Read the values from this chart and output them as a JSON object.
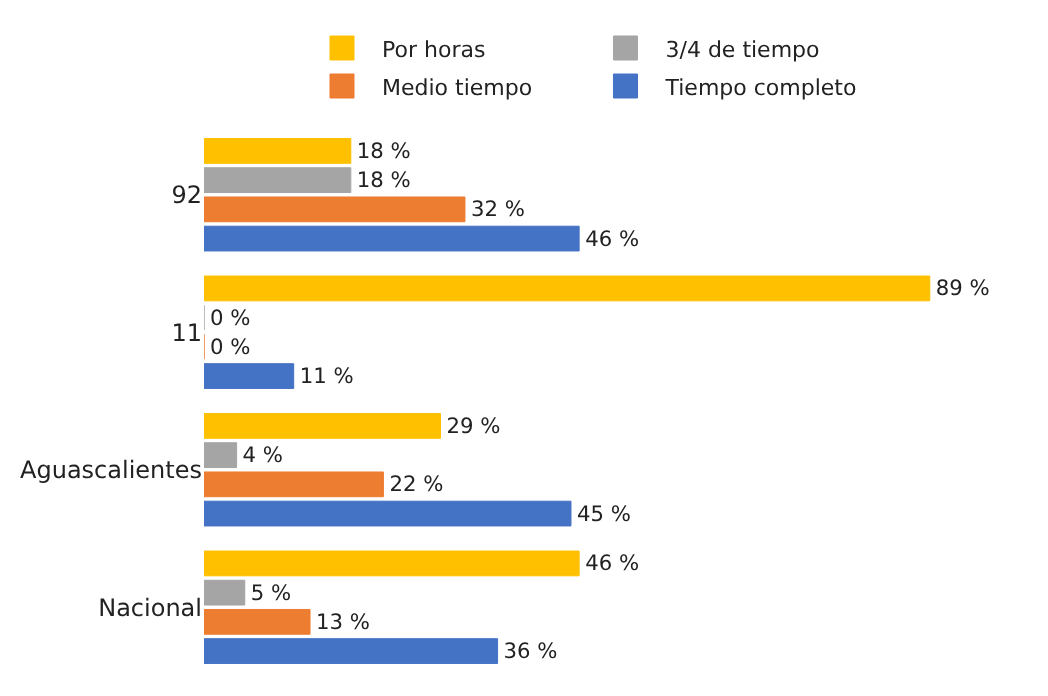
{
  "chart_data": {
    "type": "bar",
    "orientation": "horizontal",
    "categories": [
      "92",
      "11",
      "Aguascalientes",
      "Nacional"
    ],
    "legend": "top",
    "series": [
      {
        "name": "Por horas",
        "color": "#ffc000",
        "values": [
          18,
          89,
          29,
          46
        ],
        "value_labels": [
          "18 %",
          "89 %",
          "29 %",
          "46 %"
        ]
      },
      {
        "name": "3/4 de tiempo",
        "color": "#a5a5a5",
        "values": [
          18,
          0,
          4,
          5
        ],
        "value_labels": [
          "18 %",
          "0 %",
          "4 %",
          "5 %"
        ]
      },
      {
        "name": "Medio tiempo",
        "color": "#ed7d31",
        "values": [
          32,
          0,
          22,
          13
        ],
        "value_labels": [
          "32 %",
          "0 %",
          "22 %",
          "13 %"
        ]
      },
      {
        "name": "Tiempo completo",
        "color": "#4472c4",
        "values": [
          46,
          11,
          45,
          36
        ],
        "value_labels": [
          "46 %",
          "11 %",
          "45 %",
          "36 %"
        ]
      }
    ]
  }
}
